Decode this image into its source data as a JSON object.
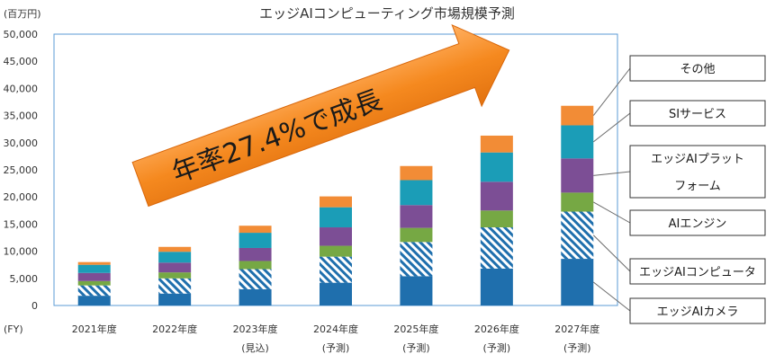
{
  "chart_data": {
    "type": "bar",
    "stacked": true,
    "title": "エッジAIコンピューティング市場規模予測",
    "unit_label": "(百万円)",
    "x_axis_prefix": "(FY)",
    "ylim": [
      0,
      50000
    ],
    "y_ticks": [
      "0",
      "5,000",
      "10,000",
      "15,000",
      "20,000",
      "25,000",
      "30,000",
      "35,000",
      "40,000",
      "45,000",
      "50,000"
    ],
    "categories": [
      {
        "label": "2021年度",
        "sub": ""
      },
      {
        "label": "2022年度",
        "sub": ""
      },
      {
        "label": "2023年度",
        "sub": "(見込)"
      },
      {
        "label": "2024年度",
        "sub": "(予測)"
      },
      {
        "label": "2025年度",
        "sub": "(予測)"
      },
      {
        "label": "2026年度",
        "sub": "(予測)"
      },
      {
        "label": "2027年度",
        "sub": "(予測)"
      }
    ],
    "series": [
      {
        "name": "エッジAIカメラ",
        "label_lines": [
          "エッジAIカメラ"
        ],
        "color": "#1f6fad",
        "pattern": "solid",
        "values": [
          1800,
          2200,
          3000,
          4200,
          5400,
          6800,
          8600
        ]
      },
      {
        "name": "エッジAIコンピュータ",
        "label_lines": [
          "エッジAIコンピュータ"
        ],
        "color": "#1f6fad",
        "pattern": "hatched",
        "values": [
          1900,
          2800,
          3700,
          4800,
          6300,
          7600,
          8700
        ]
      },
      {
        "name": "AIエンジン",
        "label_lines": [
          "AIエンジン"
        ],
        "color": "#76a844",
        "pattern": "solid",
        "values": [
          800,
          1100,
          1500,
          2000,
          2600,
          3100,
          3500
        ]
      },
      {
        "name": "エッジAIプラットフォーム",
        "label_lines": [
          "エッジAIプラット",
          "フォーム"
        ],
        "color": "#7c4e95",
        "pattern": "solid",
        "values": [
          1500,
          1800,
          2400,
          3400,
          4200,
          5300,
          6300
        ]
      },
      {
        "name": "SIサービス",
        "label_lines": [
          "SIサービス"
        ],
        "color": "#1b9db7",
        "pattern": "solid",
        "values": [
          1500,
          2000,
          2800,
          3700,
          4600,
          5400,
          6100
        ]
      },
      {
        "name": "その他",
        "label_lines": [
          "その他"
        ],
        "color": "#f28c36",
        "pattern": "solid",
        "values": [
          500,
          900,
          1300,
          2000,
          2600,
          3100,
          3600
        ]
      }
    ],
    "annotation": {
      "text": "年率27.4%で成長",
      "arrow_color": "#f28c1e"
    },
    "grid": false,
    "legend_placement": "right, callout boxes"
  }
}
